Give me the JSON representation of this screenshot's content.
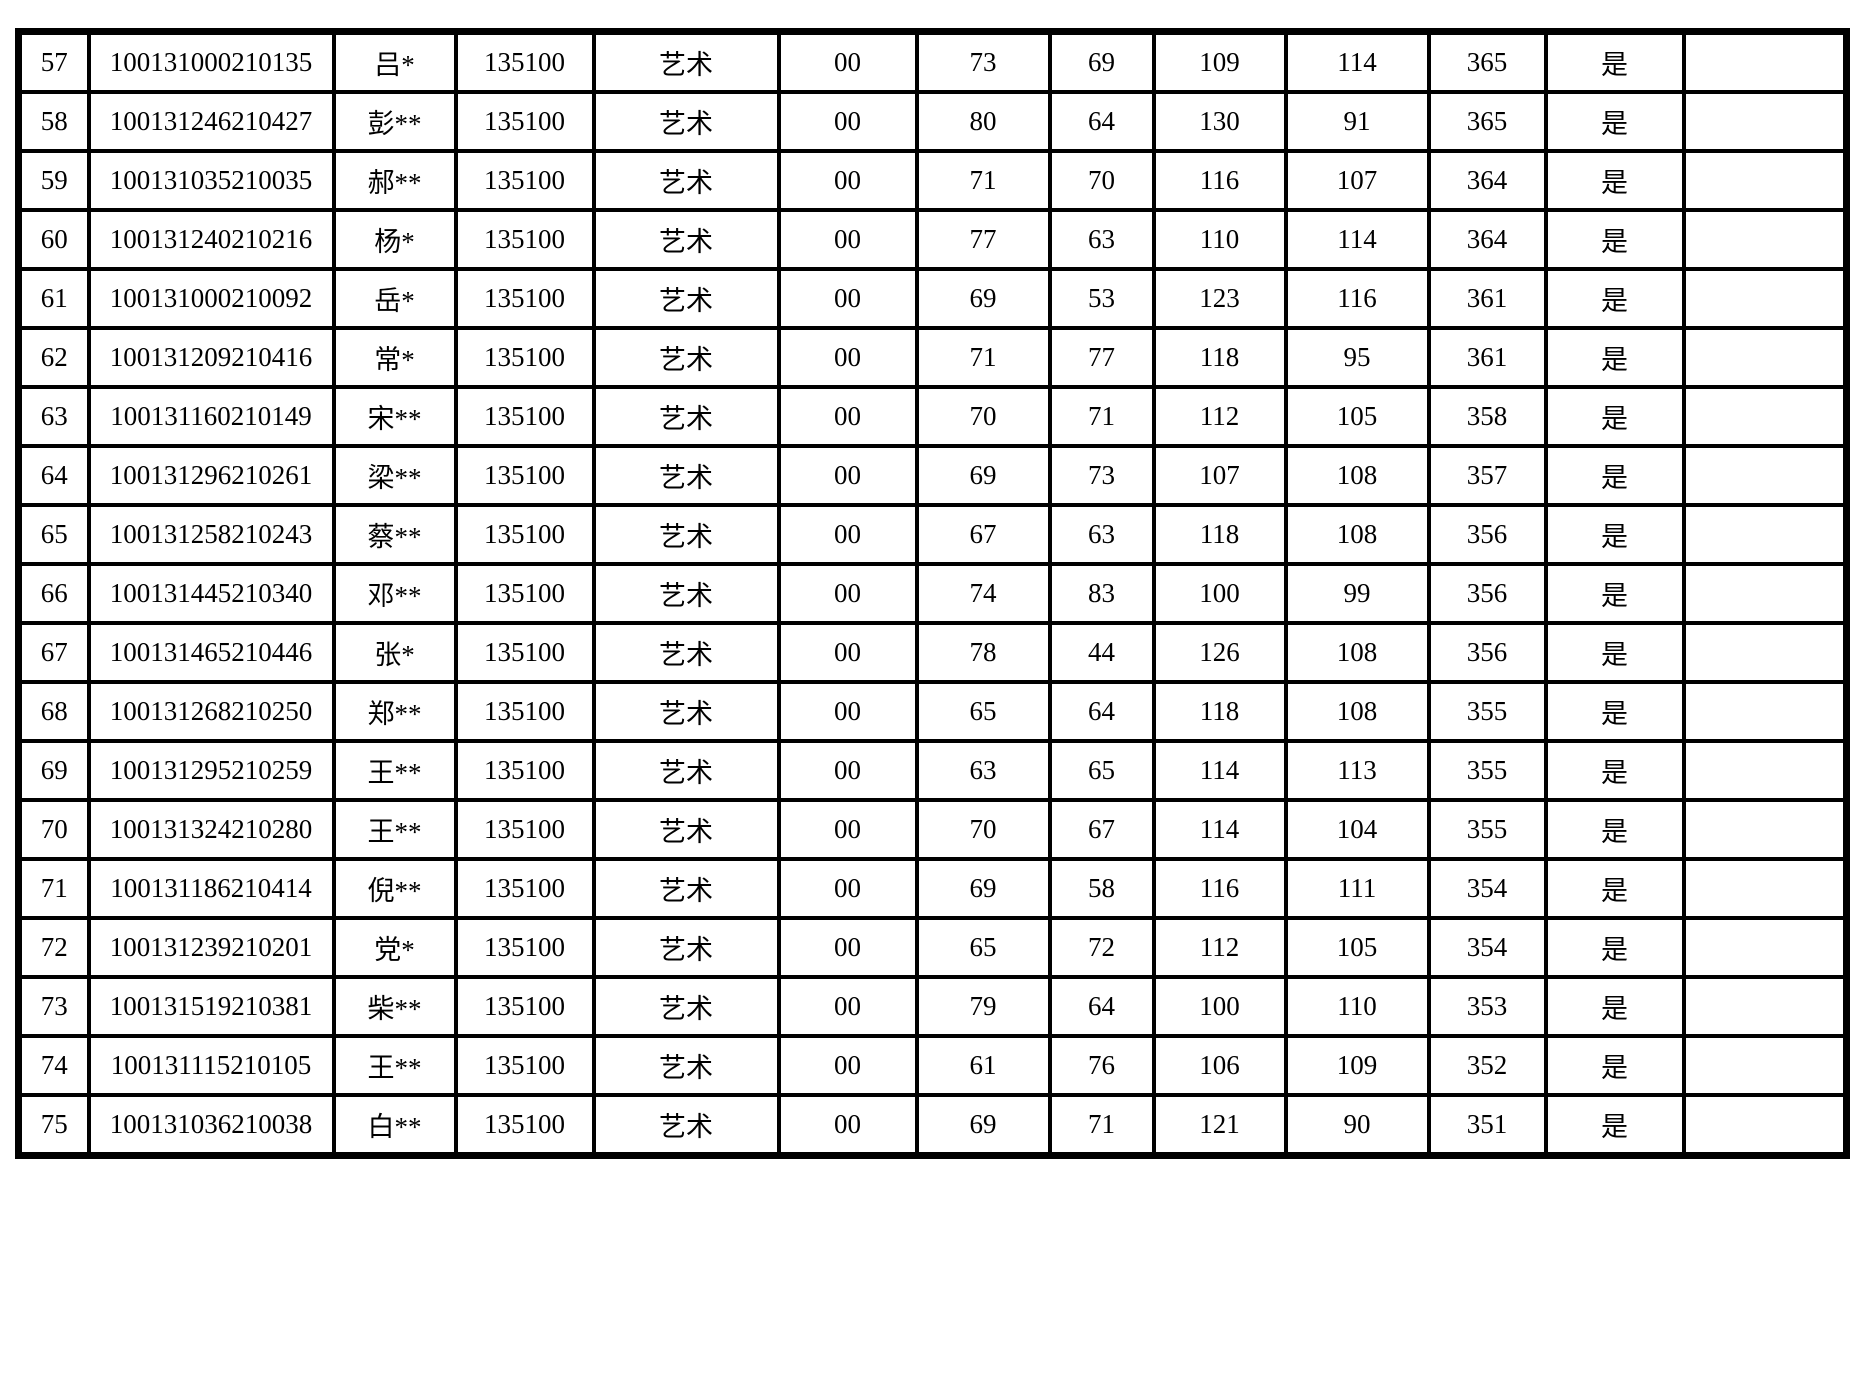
{
  "table": {
    "rows": [
      [
        "57",
        "100131000210135",
        "吕*",
        "135100",
        "艺术",
        "00",
        "73",
        "69",
        "109",
        "114",
        "365",
        "是",
        ""
      ],
      [
        "58",
        "100131246210427",
        "彭**",
        "135100",
        "艺术",
        "00",
        "80",
        "64",
        "130",
        "91",
        "365",
        "是",
        ""
      ],
      [
        "59",
        "100131035210035",
        "郝**",
        "135100",
        "艺术",
        "00",
        "71",
        "70",
        "116",
        "107",
        "364",
        "是",
        ""
      ],
      [
        "60",
        "100131240210216",
        "杨*",
        "135100",
        "艺术",
        "00",
        "77",
        "63",
        "110",
        "114",
        "364",
        "是",
        ""
      ],
      [
        "61",
        "100131000210092",
        "岳*",
        "135100",
        "艺术",
        "00",
        "69",
        "53",
        "123",
        "116",
        "361",
        "是",
        ""
      ],
      [
        "62",
        "100131209210416",
        "常*",
        "135100",
        "艺术",
        "00",
        "71",
        "77",
        "118",
        "95",
        "361",
        "是",
        ""
      ],
      [
        "63",
        "100131160210149",
        "宋**",
        "135100",
        "艺术",
        "00",
        "70",
        "71",
        "112",
        "105",
        "358",
        "是",
        ""
      ],
      [
        "64",
        "100131296210261",
        "梁**",
        "135100",
        "艺术",
        "00",
        "69",
        "73",
        "107",
        "108",
        "357",
        "是",
        ""
      ],
      [
        "65",
        "100131258210243",
        "蔡**",
        "135100",
        "艺术",
        "00",
        "67",
        "63",
        "118",
        "108",
        "356",
        "是",
        ""
      ],
      [
        "66",
        "100131445210340",
        "邓**",
        "135100",
        "艺术",
        "00",
        "74",
        "83",
        "100",
        "99",
        "356",
        "是",
        ""
      ],
      [
        "67",
        "100131465210446",
        "张*",
        "135100",
        "艺术",
        "00",
        "78",
        "44",
        "126",
        "108",
        "356",
        "是",
        ""
      ],
      [
        "68",
        "100131268210250",
        "郑**",
        "135100",
        "艺术",
        "00",
        "65",
        "64",
        "118",
        "108",
        "355",
        "是",
        ""
      ],
      [
        "69",
        "100131295210259",
        "王**",
        "135100",
        "艺术",
        "00",
        "63",
        "65",
        "114",
        "113",
        "355",
        "是",
        ""
      ],
      [
        "70",
        "100131324210280",
        "王**",
        "135100",
        "艺术",
        "00",
        "70",
        "67",
        "114",
        "104",
        "355",
        "是",
        ""
      ],
      [
        "71",
        "100131186210414",
        "倪**",
        "135100",
        "艺术",
        "00",
        "69",
        "58",
        "116",
        "111",
        "354",
        "是",
        ""
      ],
      [
        "72",
        "100131239210201",
        "党*",
        "135100",
        "艺术",
        "00",
        "65",
        "72",
        "112",
        "105",
        "354",
        "是",
        ""
      ],
      [
        "73",
        "100131519210381",
        "柴**",
        "135100",
        "艺术",
        "00",
        "79",
        "64",
        "100",
        "110",
        "353",
        "是",
        ""
      ],
      [
        "74",
        "100131115210105",
        "王**",
        "135100",
        "艺术",
        "00",
        "61",
        "76",
        "106",
        "109",
        "352",
        "是",
        ""
      ],
      [
        "75",
        "100131036210038",
        "白**",
        "135100",
        "艺术",
        "00",
        "69",
        "71",
        "121",
        "90",
        "351",
        "是",
        ""
      ]
    ]
  }
}
